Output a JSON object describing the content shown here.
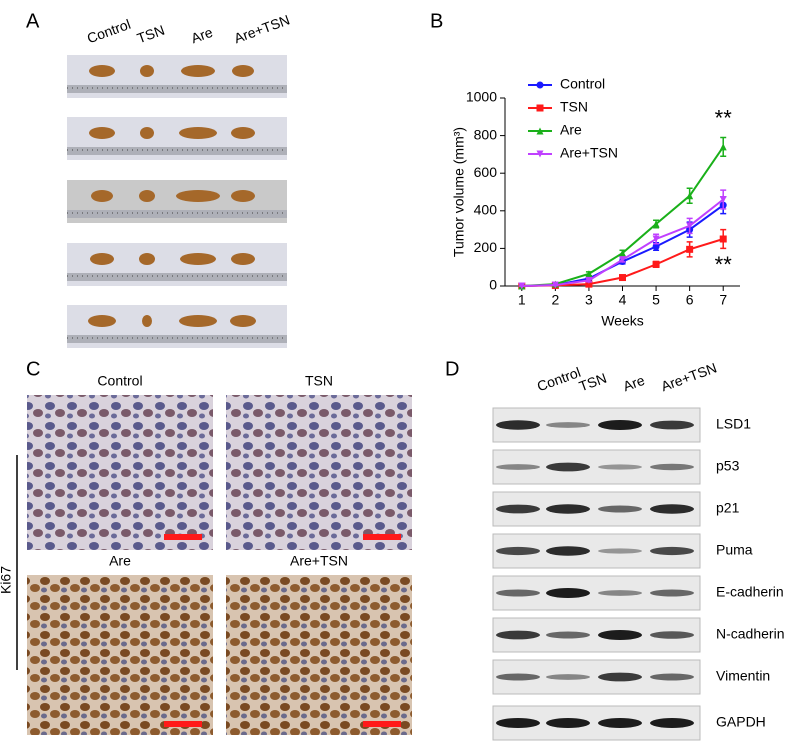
{
  "panels": {
    "a": "A",
    "b": "B",
    "c": "C",
    "d": "D"
  },
  "panel_a": {
    "columns": [
      "Control",
      "TSN",
      "Are",
      "Are+TSN"
    ]
  },
  "chart_data": {
    "type": "line",
    "ylabel": "Tumor volume (mm³)",
    "xlabel": "Weeks",
    "x": [
      1,
      2,
      3,
      4,
      5,
      6,
      7
    ],
    "xlim": [
      0.5,
      7.5
    ],
    "xticks": [
      1,
      2,
      3,
      4,
      5,
      6,
      7
    ],
    "ylim": [
      0,
      1000
    ],
    "yticks": [
      0,
      200,
      400,
      600,
      800,
      1000
    ],
    "legend": "top-left",
    "series": [
      {
        "name": "Control",
        "color": "#1a1aff",
        "marker": "circle",
        "values": [
          0,
          5,
          40,
          130,
          210,
          300,
          430
        ],
        "errors": [
          0,
          3,
          8,
          12,
          20,
          40,
          45
        ]
      },
      {
        "name": "TSN",
        "color": "#ff1a1a",
        "marker": "square",
        "values": [
          0,
          3,
          10,
          45,
          115,
          195,
          250
        ],
        "errors": [
          0,
          2,
          4,
          8,
          15,
          40,
          50
        ]
      },
      {
        "name": "Are",
        "color": "#1ab01a",
        "marker": "triangle",
        "values": [
          0,
          10,
          65,
          175,
          330,
          480,
          740
        ],
        "errors": [
          0,
          4,
          10,
          15,
          20,
          40,
          50
        ]
      },
      {
        "name": "Are+TSN",
        "color": "#c040ff",
        "marker": "triangle-down",
        "values": [
          0,
          5,
          30,
          140,
          250,
          320,
          460
        ],
        "errors": [
          0,
          3,
          8,
          12,
          25,
          40,
          50
        ]
      }
    ],
    "annotations": [
      "**",
      "**"
    ]
  },
  "panel_c": {
    "labels": [
      "Control",
      "TSN",
      "Are",
      "Are+TSN"
    ],
    "row_label": "Ki67"
  },
  "panel_d": {
    "columns": [
      "Control",
      "TSN",
      "Are",
      "Are+TSN"
    ],
    "rows": [
      "LSD1",
      "p53",
      "p21",
      "Puma",
      "E-cadherin",
      "N-cadherin",
      "Vimentin",
      "GAPDH"
    ]
  }
}
